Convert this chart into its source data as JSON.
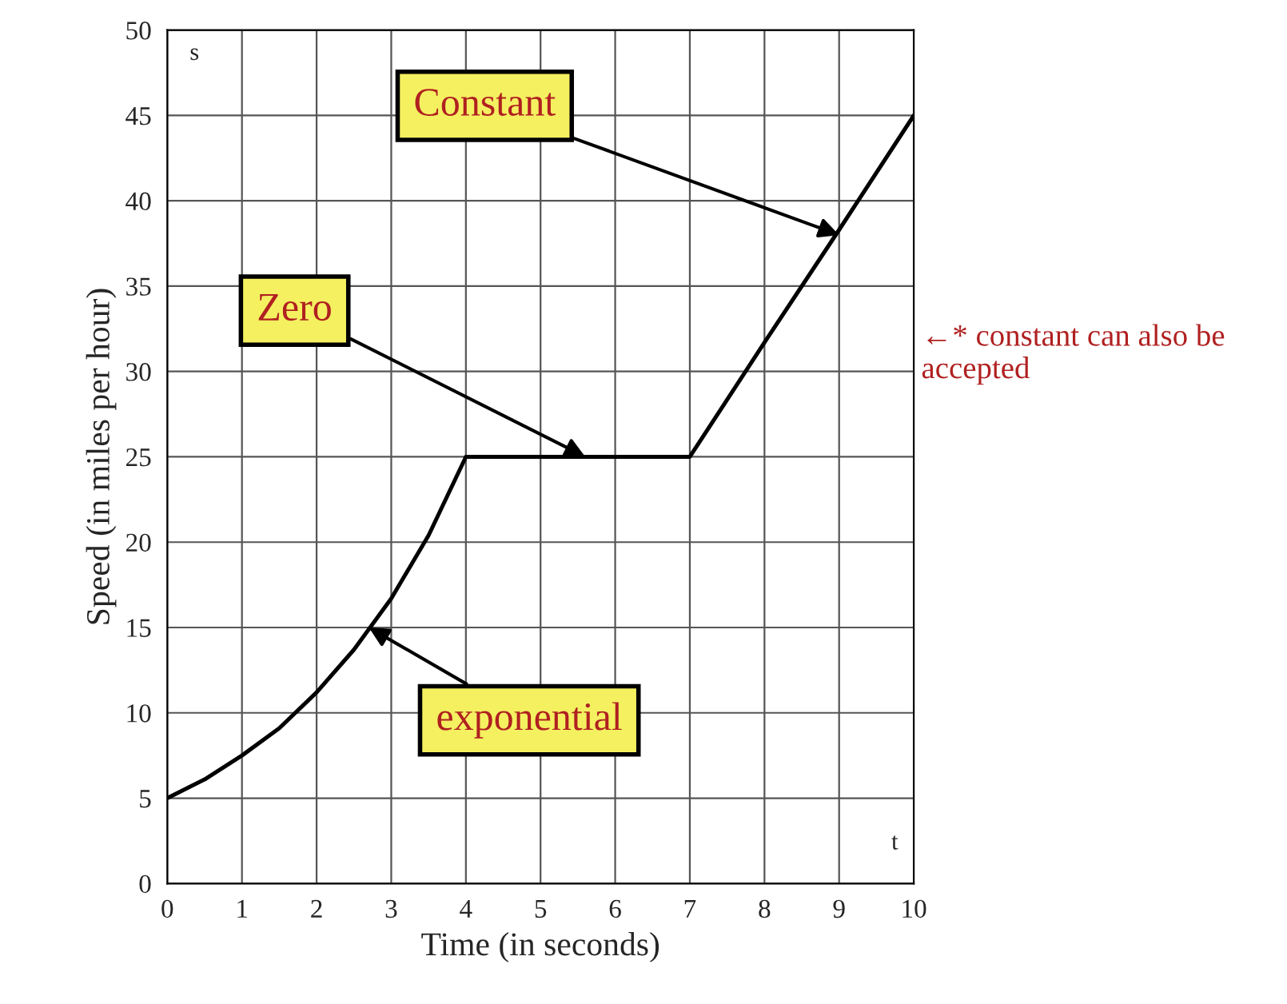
{
  "chart_data": {
    "type": "line",
    "xlabel": "Time (in seconds)",
    "ylabel": "Speed (in miles per hour)",
    "x": [
      0,
      0.5,
      1,
      1.5,
      2,
      2.5,
      3,
      3.5,
      4,
      5,
      6,
      7,
      8,
      9,
      10
    ],
    "series": [
      {
        "color": "#000000",
        "values": [
          5,
          6.1,
          7.5,
          9.1,
          11.2,
          13.7,
          16.7,
          20.4,
          25,
          25,
          25,
          25,
          31.7,
          38.3,
          45
        ]
      }
    ],
    "xlim": [
      0,
      10
    ],
    "ylim": [
      0,
      50
    ],
    "xticks": [
      0,
      1,
      2,
      3,
      4,
      5,
      6,
      7,
      8,
      9,
      10
    ],
    "yticks": [
      0,
      5,
      10,
      15,
      20,
      25,
      30,
      35,
      40,
      45,
      50
    ],
    "grid": true,
    "marker": "none",
    "line_style": "solid",
    "annotations": [
      {
        "text": "Constant",
        "x": 9,
        "y": 38
      },
      {
        "text": "Zero",
        "x": 5.6,
        "y": 25
      },
      {
        "text": "exponential",
        "x": 2.7,
        "y": 15
      },
      "←* constant can also be\naccepted",
      "s",
      "t"
    ]
  }
}
